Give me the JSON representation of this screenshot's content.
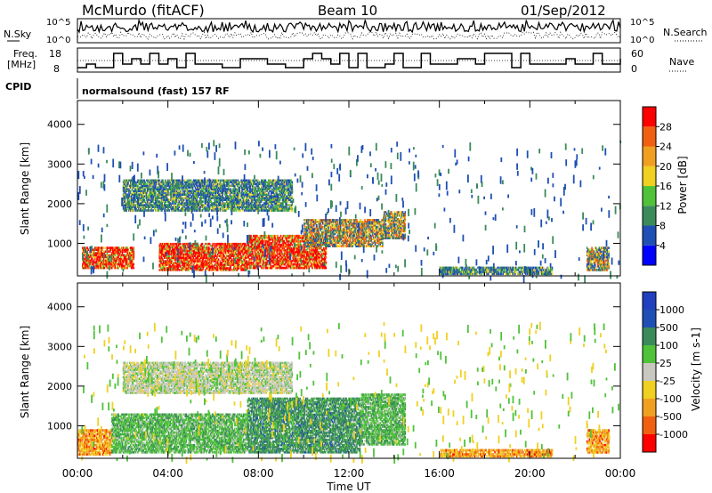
{
  "header": {
    "station": "McMurdo (fitACF)",
    "beam": "Beam 10",
    "date": "01/Sep/2012"
  },
  "top_panels": {
    "nsky_label": "N.Sky",
    "nsky_ticks": [
      "10^5",
      "10^0"
    ],
    "nsearch_label": "N.Search",
    "nsearch_ticks": [
      "10^5",
      "10^0"
    ],
    "freq_label_1": "Freq.",
    "freq_label_2": "[MHz]",
    "freq_ticks": [
      "18",
      "8"
    ],
    "nave_label": "Nave",
    "nave_ticks": [
      "60",
      "0"
    ],
    "cpid_label": "CPID",
    "cpid_text": "normalsound (fast) 157 RF"
  },
  "colors": {
    "power_scale": [
      "#0000ff",
      "#1f4fb4",
      "#3a8a5a",
      "#4fc23a",
      "#f0d020",
      "#f0a020",
      "#f06010",
      "#ff0000"
    ],
    "velocity_scale": [
      "#ff0000",
      "#f06010",
      "#f0a020",
      "#f0d020",
      "#c8c8c0",
      "#4fc23a",
      "#3a8a5a",
      "#1f4fb4",
      "#2040c0"
    ]
  },
  "chart_data": [
    {
      "type": "heatmap",
      "title": "",
      "xlabel": "",
      "ylabel": "Slant Range [km]",
      "x_ticks": [
        "00:00",
        "04:00",
        "08:00",
        "12:00",
        "16:00",
        "20:00",
        "00:00"
      ],
      "y_ticks": [
        "1000",
        "2000",
        "3000",
        "4000"
      ],
      "ylim": [
        180,
        4600
      ],
      "xlim_hours": [
        0,
        24
      ],
      "colorbar": {
        "label": "Power [dB]",
        "ticks": [
          "28",
          "24",
          "20",
          "16",
          "12",
          "8",
          "4"
        ],
        "range": [
          0,
          30
        ]
      },
      "regions": [
        {
          "t0": 0.2,
          "t1": 2.5,
          "r0": 350,
          "r1": 900,
          "level": "high"
        },
        {
          "t0": 3.6,
          "t1": 7.5,
          "r0": 300,
          "r1": 1000,
          "level": "high"
        },
        {
          "t0": 7.5,
          "t1": 11.0,
          "r0": 350,
          "r1": 1200,
          "level": "high"
        },
        {
          "t0": 10.0,
          "t1": 13.5,
          "r0": 900,
          "r1": 1600,
          "level": "mid"
        },
        {
          "t0": 13.5,
          "t1": 14.5,
          "r0": 1100,
          "r1": 1800,
          "level": "mid"
        },
        {
          "t0": 2.0,
          "t1": 9.5,
          "r0": 1800,
          "r1": 2600,
          "level": "low"
        },
        {
          "t0": 16.0,
          "t1": 21.0,
          "r0": 200,
          "r1": 400,
          "level": "low"
        },
        {
          "t0": 22.5,
          "t1": 23.5,
          "r0": 300,
          "r1": 900,
          "level": "mid"
        }
      ]
    },
    {
      "type": "heatmap",
      "title": "",
      "xlabel": "Time UT",
      "ylabel": "Slant Range [km]",
      "x_ticks": [
        "00:00",
        "04:00",
        "08:00",
        "12:00",
        "16:00",
        "20:00",
        "00:00"
      ],
      "y_ticks": [
        "1000",
        "2000",
        "3000",
        "4000"
      ],
      "ylim": [
        180,
        4600
      ],
      "xlim_hours": [
        0,
        24
      ],
      "colorbar": {
        "label": "Velocity [m s-1]",
        "ticks": [
          "1000",
          "500",
          "100",
          "25",
          "-25",
          "-100",
          "-500",
          "-1000"
        ],
        "range": [
          -1000,
          1000
        ]
      },
      "regions": [
        {
          "t0": 0.0,
          "t1": 1.5,
          "r0": 250,
          "r1": 900,
          "level": "neg"
        },
        {
          "t0": 1.5,
          "t1": 7.5,
          "r0": 300,
          "r1": 1300,
          "level": "pos"
        },
        {
          "t0": 7.5,
          "t1": 12.5,
          "r0": 300,
          "r1": 1700,
          "level": "strong"
        },
        {
          "t0": 12.5,
          "t1": 14.5,
          "r0": 500,
          "r1": 1800,
          "level": "pos"
        },
        {
          "t0": 2.0,
          "t1": 9.5,
          "r0": 1800,
          "r1": 2600,
          "level": "zero"
        },
        {
          "t0": 16.0,
          "t1": 21.0,
          "r0": 200,
          "r1": 400,
          "level": "neg"
        },
        {
          "t0": 22.5,
          "t1": 23.5,
          "r0": 300,
          "r1": 900,
          "level": "neg"
        }
      ]
    }
  ]
}
